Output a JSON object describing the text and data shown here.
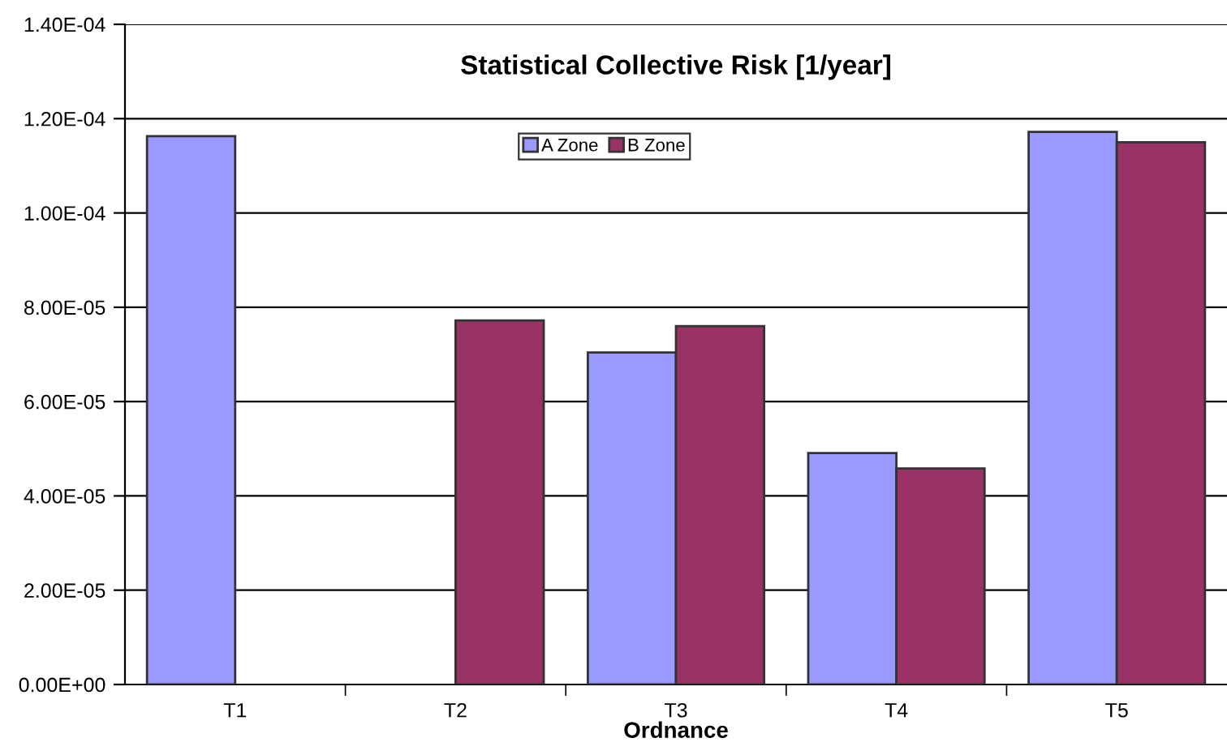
{
  "chart_data": {
    "type": "bar",
    "title": "Statistical Collective Risk [1/year]",
    "xlabel": "Ordnance",
    "categories": [
      "T1",
      "T2",
      "T3",
      "T4",
      "T5"
    ],
    "series": [
      {
        "name": "A Zone",
        "color": "#9999ff",
        "values": [
          0.0001163,
          null,
          7.04e-05,
          4.91e-05,
          0.0001172
        ]
      },
      {
        "name": "B Zone",
        "color": "#993366",
        "values": [
          null,
          7.72e-05,
          7.6e-05,
          4.58e-05,
          0.000115
        ]
      }
    ],
    "ylim": [
      0,
      0.00014
    ],
    "yticks": [
      {
        "value": 0,
        "label": "0.00E+00"
      },
      {
        "value": 2e-05,
        "label": "2.00E-05"
      },
      {
        "value": 4e-05,
        "label": "4.00E-05"
      },
      {
        "value": 6e-05,
        "label": "6.00E-05"
      },
      {
        "value": 8e-05,
        "label": "8.00E-05"
      },
      {
        "value": 0.0001,
        "label": "1.00E-04"
      },
      {
        "value": 0.00012,
        "label": "1.20E-04"
      },
      {
        "value": 0.00014,
        "label": "1.40E-04"
      }
    ],
    "grid": "y",
    "legend": "top"
  }
}
